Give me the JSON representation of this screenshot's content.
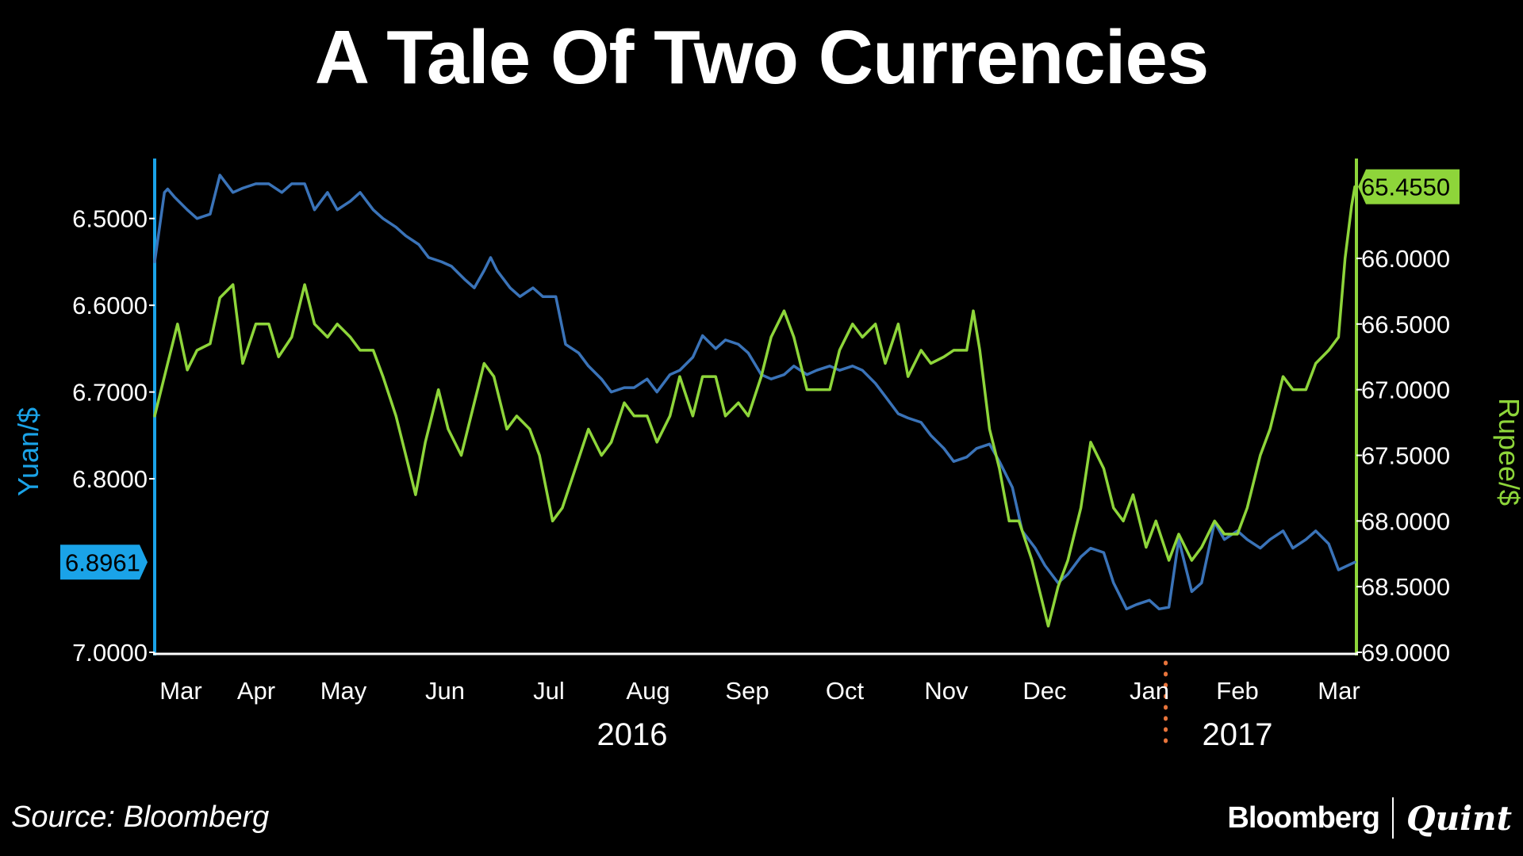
{
  "title": "A Tale Of Two Currencies",
  "source": "Source: Bloomberg",
  "brand": {
    "left": "Bloomberg",
    "right": "Quint"
  },
  "chart_data": {
    "type": "line",
    "title": "A Tale Of Two Currencies",
    "x_labels": [
      "Mar",
      "Apr",
      "May",
      "Jun",
      "Jul",
      "Aug",
      "Sep",
      "Oct",
      "Nov",
      "Dec",
      "Jan",
      "Feb",
      "Mar"
    ],
    "year_labels": [
      "2016",
      "2017"
    ],
    "x_range": [
      "2016-02-26",
      "2017-02-28"
    ],
    "year_divider": "2017-01-01",
    "left_axis": {
      "label": "Yuan/$",
      "color": "#1aa3e8",
      "reversed": true,
      "range": [
        6.44,
        7.0
      ],
      "ticks": [
        "6.5000",
        "6.6000",
        "6.7000",
        "6.8000",
        "7.0000"
      ],
      "callout": "6.8961"
    },
    "right_axis": {
      "label": "Rupee/$",
      "color": "#8ed53a",
      "reversed": true,
      "range": [
        65.3,
        69.0
      ],
      "ticks": [
        "66.0000",
        "66.5000",
        "67.0000",
        "67.5000",
        "68.0000",
        "68.5000",
        "69.0000"
      ],
      "callout": "65.4550"
    },
    "series": [
      {
        "name": "Yuan/$",
        "axis": "left",
        "color": "#3a73b8",
        "points": [
          [
            "2016-02-26",
            6.55
          ],
          [
            "2016-02-29",
            6.47
          ],
          [
            "2016-03-01",
            6.466
          ],
          [
            "2016-03-03",
            6.475
          ],
          [
            "2016-03-07",
            6.49
          ],
          [
            "2016-03-10",
            6.5
          ],
          [
            "2016-03-14",
            6.495
          ],
          [
            "2016-03-17",
            6.45
          ],
          [
            "2016-03-21",
            6.47
          ],
          [
            "2016-03-24",
            6.465
          ],
          [
            "2016-03-28",
            6.46
          ],
          [
            "2016-04-01",
            6.46
          ],
          [
            "2016-04-05",
            6.47
          ],
          [
            "2016-04-08",
            6.46
          ],
          [
            "2016-04-12",
            6.46
          ],
          [
            "2016-04-15",
            6.49
          ],
          [
            "2016-04-19",
            6.47
          ],
          [
            "2016-04-22",
            6.49
          ],
          [
            "2016-04-26",
            6.48
          ],
          [
            "2016-04-29",
            6.47
          ],
          [
            "2016-05-03",
            6.49
          ],
          [
            "2016-05-06",
            6.5
          ],
          [
            "2016-05-10",
            6.51
          ],
          [
            "2016-05-13",
            6.52
          ],
          [
            "2016-05-17",
            6.53
          ],
          [
            "2016-05-20",
            6.545
          ],
          [
            "2016-05-24",
            6.55
          ],
          [
            "2016-05-27",
            6.555
          ],
          [
            "2016-05-31",
            6.57
          ],
          [
            "2016-06-03",
            6.58
          ],
          [
            "2016-06-06",
            6.56
          ],
          [
            "2016-06-08",
            6.545
          ],
          [
            "2016-06-10",
            6.56
          ],
          [
            "2016-06-14",
            6.58
          ],
          [
            "2016-06-17",
            6.59
          ],
          [
            "2016-06-21",
            6.58
          ],
          [
            "2016-06-24",
            6.59
          ],
          [
            "2016-06-28",
            6.59
          ],
          [
            "2016-07-01",
            6.645
          ],
          [
            "2016-07-05",
            6.655
          ],
          [
            "2016-07-08",
            6.67
          ],
          [
            "2016-07-12",
            6.685
          ],
          [
            "2016-07-15",
            6.7
          ],
          [
            "2016-07-19",
            6.695
          ],
          [
            "2016-07-22",
            6.695
          ],
          [
            "2016-07-26",
            6.685
          ],
          [
            "2016-07-29",
            6.7
          ],
          [
            "2016-08-02",
            6.68
          ],
          [
            "2016-08-05",
            6.675
          ],
          [
            "2016-08-09",
            6.66
          ],
          [
            "2016-08-12",
            6.635
          ],
          [
            "2016-08-16",
            6.65
          ],
          [
            "2016-08-19",
            6.64
          ],
          [
            "2016-08-23",
            6.645
          ],
          [
            "2016-08-26",
            6.655
          ],
          [
            "2016-08-30",
            6.68
          ],
          [
            "2016-09-02",
            6.685
          ],
          [
            "2016-09-06",
            6.68
          ],
          [
            "2016-09-09",
            6.67
          ],
          [
            "2016-09-13",
            6.68
          ],
          [
            "2016-09-16",
            6.675
          ],
          [
            "2016-09-20",
            6.67
          ],
          [
            "2016-09-23",
            6.675
          ],
          [
            "2016-09-27",
            6.67
          ],
          [
            "2016-09-30",
            6.675
          ],
          [
            "2016-10-04",
            6.69
          ],
          [
            "2016-10-07",
            6.705
          ],
          [
            "2016-10-11",
            6.725
          ],
          [
            "2016-10-14",
            6.73
          ],
          [
            "2016-10-18",
            6.735
          ],
          [
            "2016-10-21",
            6.75
          ],
          [
            "2016-10-25",
            6.765
          ],
          [
            "2016-10-28",
            6.78
          ],
          [
            "2016-11-01",
            6.775
          ],
          [
            "2016-11-04",
            6.765
          ],
          [
            "2016-11-08",
            6.76
          ],
          [
            "2016-11-11",
            6.78
          ],
          [
            "2016-11-15",
            6.81
          ],
          [
            "2016-11-18",
            6.86
          ],
          [
            "2016-11-22",
            6.88
          ],
          [
            "2016-11-25",
            6.9
          ],
          [
            "2016-11-29",
            6.92
          ],
          [
            "2016-12-02",
            6.91
          ],
          [
            "2016-12-06",
            6.89
          ],
          [
            "2016-12-09",
            6.88
          ],
          [
            "2016-12-13",
            6.885
          ],
          [
            "2016-12-16",
            6.92
          ],
          [
            "2016-12-20",
            6.95
          ],
          [
            "2016-12-23",
            6.945
          ],
          [
            "2016-12-27",
            6.94
          ],
          [
            "2016-12-30",
            6.95
          ],
          [
            "2017-01-02",
            6.948
          ],
          [
            "2017-01-05",
            6.87
          ],
          [
            "2017-01-09",
            6.93
          ],
          [
            "2017-01-12",
            6.92
          ],
          [
            "2017-01-16",
            6.85
          ],
          [
            "2017-01-19",
            6.87
          ],
          [
            "2017-01-23",
            6.86
          ],
          [
            "2017-01-26",
            6.87
          ],
          [
            "2017-01-30",
            6.88
          ],
          [
            "2017-02-02",
            6.87
          ],
          [
            "2017-02-06",
            6.86
          ],
          [
            "2017-02-09",
            6.88
          ],
          [
            "2017-02-13",
            6.87
          ],
          [
            "2017-02-16",
            6.86
          ],
          [
            "2017-02-20",
            6.875
          ],
          [
            "2017-02-23",
            6.905
          ],
          [
            "2017-02-28",
            6.8961
          ]
        ]
      },
      {
        "name": "Rupee/$",
        "axis": "right",
        "color": "#8ed53a",
        "points": [
          [
            "2016-02-26",
            67.2
          ],
          [
            "2016-03-01",
            66.8
          ],
          [
            "2016-03-04",
            66.5
          ],
          [
            "2016-03-07",
            66.85
          ],
          [
            "2016-03-10",
            66.7
          ],
          [
            "2016-03-14",
            66.65
          ],
          [
            "2016-03-17",
            66.3
          ],
          [
            "2016-03-21",
            66.2
          ],
          [
            "2016-03-24",
            66.8
          ],
          [
            "2016-03-28",
            66.5
          ],
          [
            "2016-04-01",
            66.5
          ],
          [
            "2016-04-04",
            66.75
          ],
          [
            "2016-04-08",
            66.6
          ],
          [
            "2016-04-12",
            66.2
          ],
          [
            "2016-04-15",
            66.5
          ],
          [
            "2016-04-19",
            66.6
          ],
          [
            "2016-04-22",
            66.5
          ],
          [
            "2016-04-26",
            66.6
          ],
          [
            "2016-04-29",
            66.7
          ],
          [
            "2016-05-03",
            66.7
          ],
          [
            "2016-05-06",
            66.9
          ],
          [
            "2016-05-10",
            67.2
          ],
          [
            "2016-05-13",
            67.5
          ],
          [
            "2016-05-16",
            67.8
          ],
          [
            "2016-05-19",
            67.4
          ],
          [
            "2016-05-23",
            67.0
          ],
          [
            "2016-05-26",
            67.3
          ],
          [
            "2016-05-30",
            67.5
          ],
          [
            "2016-06-02",
            67.2
          ],
          [
            "2016-06-06",
            66.8
          ],
          [
            "2016-06-09",
            66.9
          ],
          [
            "2016-06-13",
            67.3
          ],
          [
            "2016-06-16",
            67.2
          ],
          [
            "2016-06-20",
            67.3
          ],
          [
            "2016-06-23",
            67.5
          ],
          [
            "2016-06-27",
            68.0
          ],
          [
            "2016-06-30",
            67.9
          ],
          [
            "2016-07-04",
            67.6
          ],
          [
            "2016-07-08",
            67.3
          ],
          [
            "2016-07-12",
            67.5
          ],
          [
            "2016-07-15",
            67.4
          ],
          [
            "2016-07-19",
            67.1
          ],
          [
            "2016-07-22",
            67.2
          ],
          [
            "2016-07-26",
            67.2
          ],
          [
            "2016-07-29",
            67.4
          ],
          [
            "2016-08-02",
            67.2
          ],
          [
            "2016-08-05",
            66.9
          ],
          [
            "2016-08-09",
            67.2
          ],
          [
            "2016-08-12",
            66.9
          ],
          [
            "2016-08-16",
            66.9
          ],
          [
            "2016-08-19",
            67.2
          ],
          [
            "2016-08-23",
            67.1
          ],
          [
            "2016-08-26",
            67.2
          ],
          [
            "2016-08-30",
            66.9
          ],
          [
            "2016-09-02",
            66.6
          ],
          [
            "2016-09-06",
            66.4
          ],
          [
            "2016-09-09",
            66.6
          ],
          [
            "2016-09-13",
            67.0
          ],
          [
            "2016-09-16",
            67.0
          ],
          [
            "2016-09-20",
            67.0
          ],
          [
            "2016-09-23",
            66.7
          ],
          [
            "2016-09-27",
            66.5
          ],
          [
            "2016-09-30",
            66.6
          ],
          [
            "2016-10-04",
            66.5
          ],
          [
            "2016-10-07",
            66.8
          ],
          [
            "2016-10-11",
            66.5
          ],
          [
            "2016-10-14",
            66.9
          ],
          [
            "2016-10-18",
            66.7
          ],
          [
            "2016-10-21",
            66.8
          ],
          [
            "2016-10-25",
            66.75
          ],
          [
            "2016-10-28",
            66.7
          ],
          [
            "2016-11-01",
            66.7
          ],
          [
            "2016-11-03",
            66.4
          ],
          [
            "2016-11-05",
            66.7
          ],
          [
            "2016-11-08",
            67.3
          ],
          [
            "2016-11-11",
            67.6
          ],
          [
            "2016-11-14",
            68.0
          ],
          [
            "2016-11-17",
            68.0
          ],
          [
            "2016-11-21",
            68.3
          ],
          [
            "2016-11-24",
            68.6
          ],
          [
            "2016-11-26",
            68.8
          ],
          [
            "2016-11-29",
            68.5
          ],
          [
            "2016-12-02",
            68.3
          ],
          [
            "2016-12-06",
            67.9
          ],
          [
            "2016-12-09",
            67.4
          ],
          [
            "2016-12-13",
            67.6
          ],
          [
            "2016-12-16",
            67.9
          ],
          [
            "2016-12-19",
            68.0
          ],
          [
            "2016-12-22",
            67.8
          ],
          [
            "2016-12-26",
            68.2
          ],
          [
            "2016-12-29",
            68.0
          ],
          [
            "2017-01-02",
            68.3
          ],
          [
            "2017-01-05",
            68.1
          ],
          [
            "2017-01-09",
            68.3
          ],
          [
            "2017-01-12",
            68.2
          ],
          [
            "2017-01-16",
            68.0
          ],
          [
            "2017-01-19",
            68.1
          ],
          [
            "2017-01-23",
            68.1
          ],
          [
            "2017-01-26",
            67.9
          ],
          [
            "2017-01-30",
            67.5
          ],
          [
            "2017-02-02",
            67.3
          ],
          [
            "2017-02-06",
            66.9
          ],
          [
            "2017-02-09",
            67.0
          ],
          [
            "2017-02-13",
            67.0
          ],
          [
            "2017-02-16",
            66.8
          ],
          [
            "2017-02-20",
            66.7
          ],
          [
            "2017-02-23",
            66.6
          ],
          [
            "2017-02-25",
            66.0
          ],
          [
            "2017-02-27",
            65.6
          ],
          [
            "2017-02-28",
            65.455
          ]
        ]
      }
    ]
  }
}
